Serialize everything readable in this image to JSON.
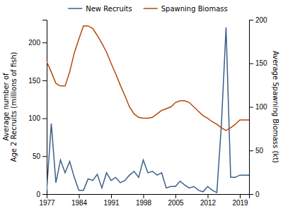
{
  "chart_data": {
    "type": "line",
    "x": [
      1977,
      1978,
      1979,
      1980,
      1981,
      1982,
      1983,
      1984,
      1985,
      1986,
      1987,
      1988,
      1989,
      1990,
      1991,
      1992,
      1993,
      1994,
      1995,
      1996,
      1997,
      1998,
      1999,
      2000,
      2001,
      2002,
      2003,
      2004,
      2005,
      2006,
      2007,
      2008,
      2009,
      2010,
      2011,
      2012,
      2013,
      2014,
      2015,
      2016,
      2017,
      2018,
      2019,
      2020,
      2021
    ],
    "series": [
      {
        "name": "New Recruits",
        "color": "#3A5F8A",
        "values": [
          5,
          93,
          15,
          45,
          28,
          43,
          22,
          5,
          5,
          20,
          18,
          26,
          8,
          28,
          18,
          22,
          15,
          18,
          25,
          30,
          22,
          45,
          28,
          30,
          25,
          28,
          8,
          10,
          10,
          17,
          12,
          8,
          10,
          5,
          3,
          10,
          5,
          2,
          93,
          220,
          22,
          22,
          25,
          25,
          25
        ]
      },
      {
        "name": "Spawning Biomass",
        "color": "#B5490A",
        "axis": "y2",
        "values": [
          152,
          140,
          127,
          124,
          124,
          140,
          162,
          178,
          193,
          193,
          190,
          182,
          173,
          163,
          150,
          138,
          125,
          113,
          100,
          92,
          88,
          87,
          87,
          88,
          92,
          96,
          98,
          100,
          105,
          107,
          107,
          105,
          100,
          95,
          90,
          87,
          83,
          80,
          76,
          73,
          76,
          80,
          85,
          85,
          85
        ]
      }
    ],
    "ylabel": "Average number of\nAge 2 Recruits (millions of fish)",
    "y2label": "Average Spawning Biomass (kt)",
    "xlim": [
      1977,
      2021
    ],
    "xticks": [
      1977,
      1984,
      1991,
      1998,
      2005,
      2012,
      2019
    ],
    "ylim": [
      0,
      230
    ],
    "yticks": [
      0,
      50,
      100,
      150,
      200
    ],
    "y2lim": [
      0,
      200
    ],
    "y2ticks": [
      0,
      50,
      100,
      150,
      200
    ],
    "legend": "top",
    "grid": false
  }
}
